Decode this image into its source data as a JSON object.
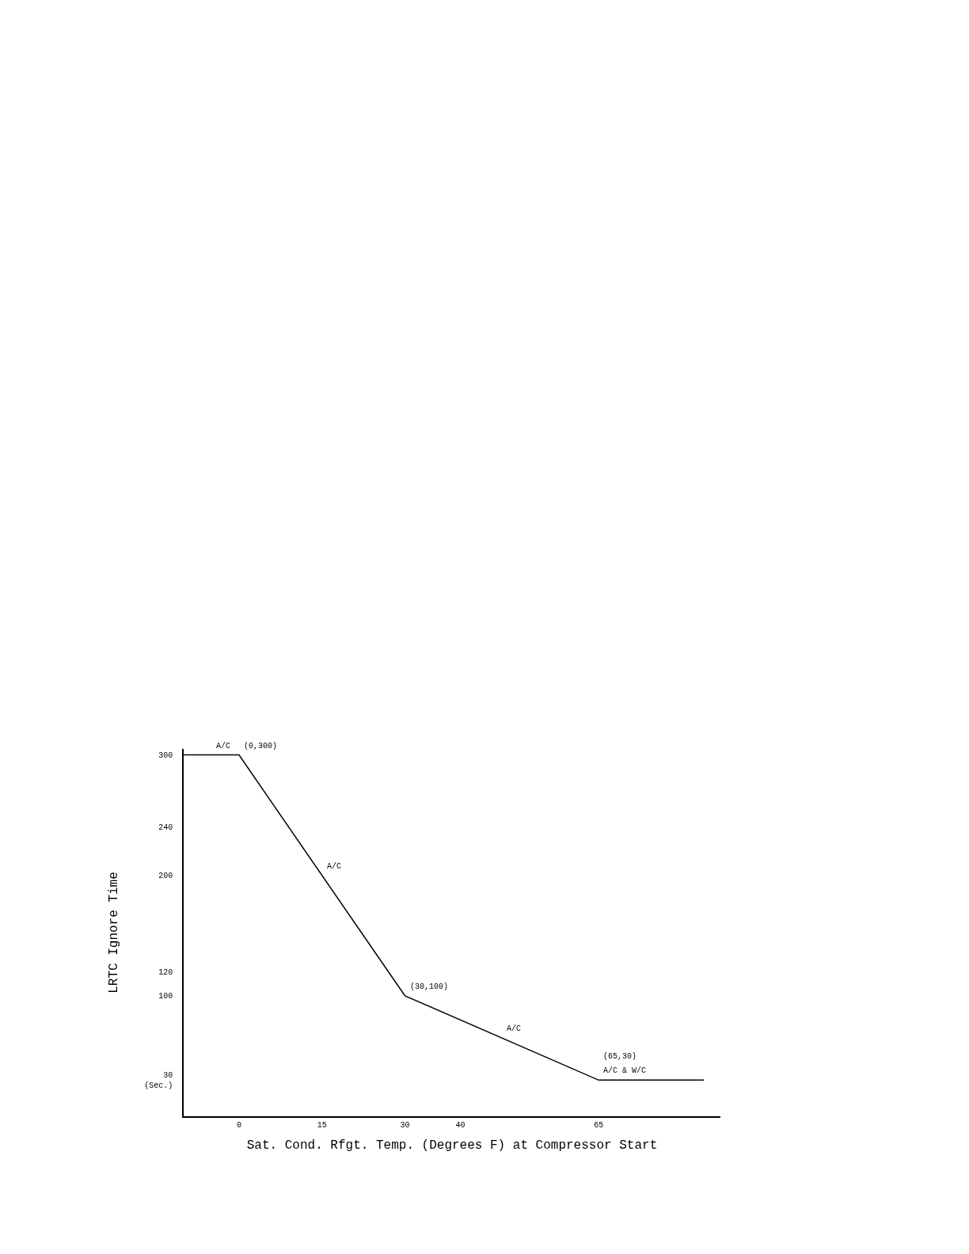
{
  "chart_data": {
    "type": "line",
    "xlabel": "Sat. Cond. Rfgt. Temp. (Degrees F) at Compressor Start",
    "ylabel": "LRTC Ignore Time",
    "x": [
      -10,
      0,
      30,
      65,
      84
    ],
    "series": [
      {
        "color": "#000000",
        "values": [
          300,
          300,
          100,
          30,
          30
        ]
      }
    ],
    "xlim": [
      -10,
      87
    ],
    "xticks": [
      0,
      15,
      30,
      40,
      65
    ],
    "ylim": [
      0,
      305
    ],
    "yticks": [
      300,
      240,
      200,
      120,
      100,
      {
        "value": 30,
        "label": "30\n(Sec.)"
      }
    ],
    "annotations": [
      {
        "text": "A/C",
        "x": -5,
        "y": 300
      },
      {
        "text": "(0,300)",
        "x": 0,
        "y": 300
      },
      {
        "text": "A/C",
        "x": 15,
        "y": 200
      },
      {
        "text": "(30,100)",
        "x": 30,
        "y": 100
      },
      {
        "text": "A/C",
        "x": 47.5,
        "y": 65
      },
      {
        "text": "A/C & W/C",
        "x": 65,
        "y": 30
      },
      {
        "text": "(65,30)",
        "x": 65,
        "y": 30
      }
    ],
    "grid": false,
    "legend": false,
    "marker": "none",
    "line_style": "solid"
  }
}
